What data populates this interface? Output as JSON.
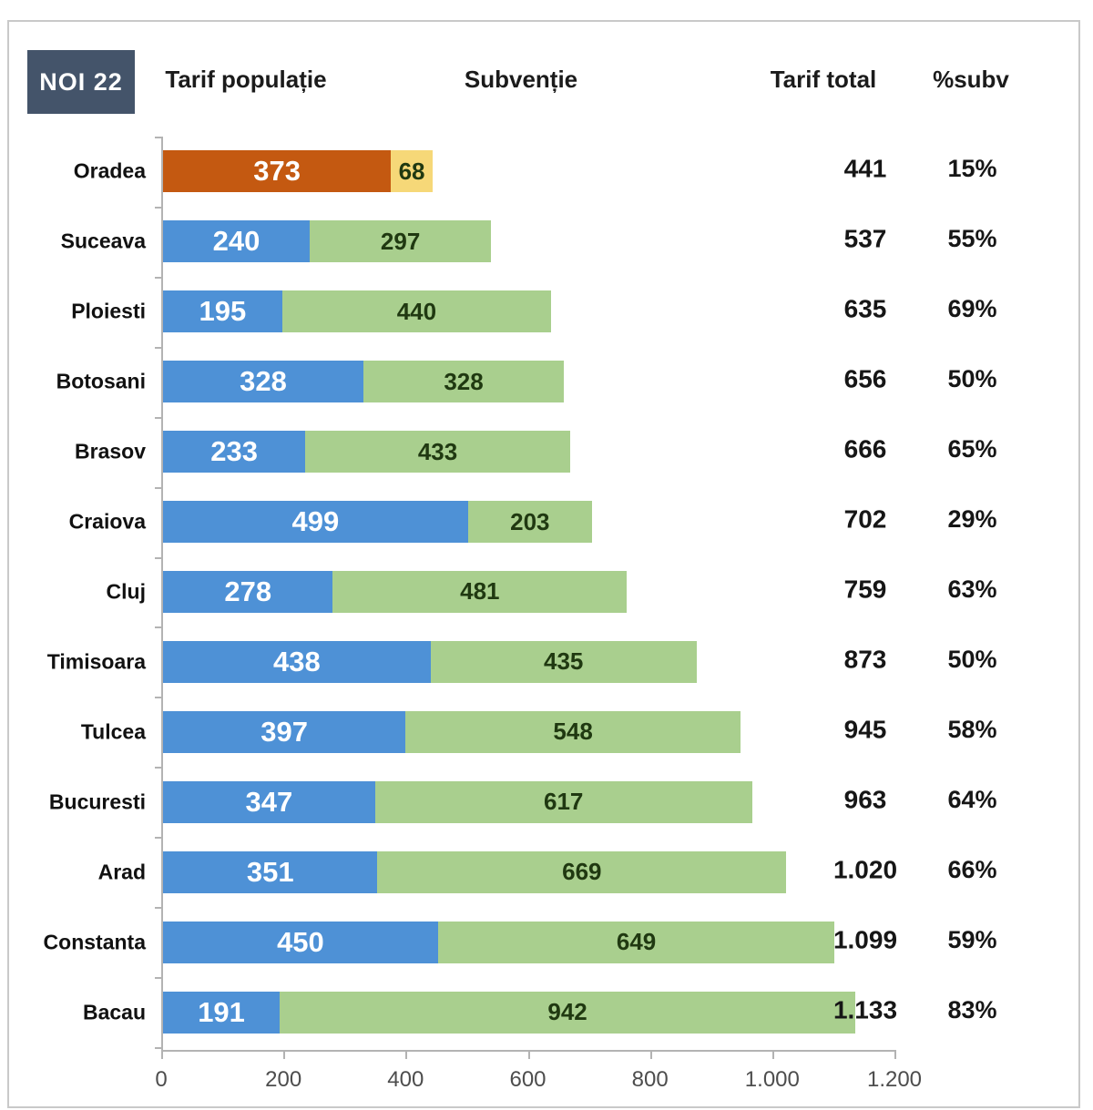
{
  "header": {
    "badge": "NOI 22",
    "col_populatie": "Tarif populație",
    "col_subventie": "Subvenție",
    "col_total": "Tarif total",
    "col_pct": "%subv"
  },
  "colors": {
    "populatie": "#4E91D6",
    "subventie": "#A9CF8E",
    "populatie_highlight": "#C45911",
    "subventie_highlight": "#F6D878",
    "badge_bg": "#44546A",
    "axis": "#b3b3b3"
  },
  "chart_data": {
    "type": "bar",
    "orientation": "horizontal",
    "stacked": true,
    "title": "NOI 22",
    "legend_position": "top",
    "grid": false,
    "xlim": [
      0,
      1200
    ],
    "x_ticks": [
      "0",
      "200",
      "400",
      "600",
      "800",
      "1.000",
      "1.200"
    ],
    "x_tick_values": [
      0,
      200,
      400,
      600,
      800,
      1000,
      1200
    ],
    "categories": [
      "Oradea",
      "Suceava",
      "Ploiesti",
      "Botosani",
      "Brasov",
      "Craiova",
      "Cluj",
      "Timisoara",
      "Tulcea",
      "Bucuresti",
      "Arad",
      "Constanta",
      "Bacau"
    ],
    "series": [
      {
        "name": "Tarif populație",
        "values": [
          373,
          240,
          195,
          328,
          233,
          499,
          278,
          438,
          397,
          347,
          351,
          450,
          191
        ]
      },
      {
        "name": "Subvenție",
        "values": [
          68,
          297,
          440,
          328,
          433,
          203,
          481,
          435,
          548,
          617,
          669,
          649,
          942
        ]
      }
    ],
    "totals": [
      "441",
      "537",
      "635",
      "656",
      "666",
      "702",
      "759",
      "873",
      "945",
      "963",
      "1.020",
      "1.099",
      "1.133"
    ],
    "subv_pct": [
      "15%",
      "55%",
      "69%",
      "50%",
      "65%",
      "29%",
      "63%",
      "50%",
      "58%",
      "64%",
      "66%",
      "59%",
      "83%"
    ],
    "highlight_row": 0
  }
}
